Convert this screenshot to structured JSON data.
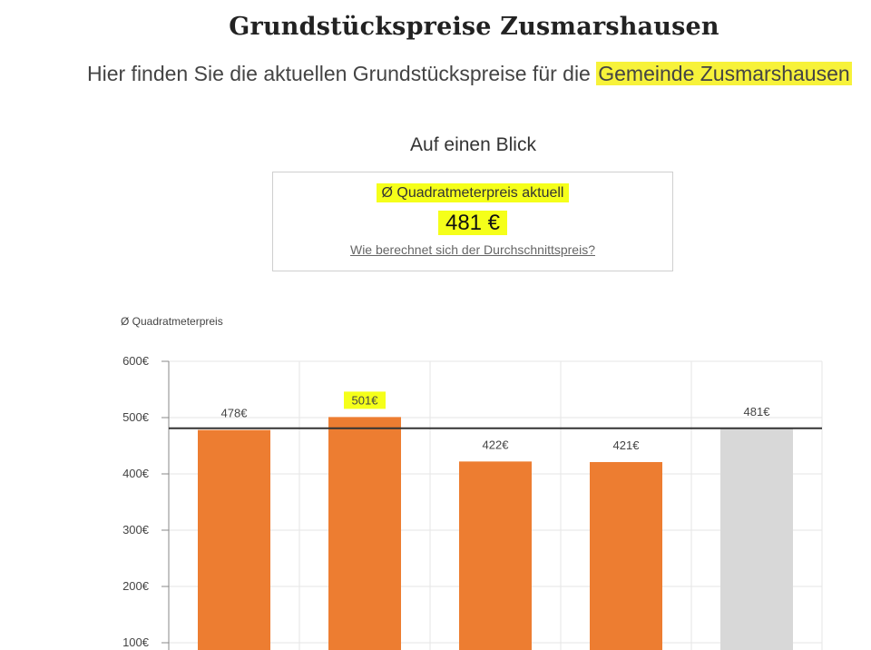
{
  "header": {
    "title": "Grundstückspreise Zusmarshausen",
    "subtitle_prefix": "Hier finden Sie die aktuellen Grundstückspreise für die ",
    "subtitle_highlight": "Gemeinde Zusmarshausen"
  },
  "overview": {
    "section_title": "Auf einen Blick",
    "label": "Ø Quadratmeterpreis aktuell",
    "value": "481 €",
    "link": "Wie berechnet sich der Durchschnittspreis?"
  },
  "colors": {
    "bar": "#ed7d31",
    "bar_average": "#d8d8d8",
    "reference_line": "#333333",
    "highlight": "#f5ff1a",
    "grid": "#e6e6e6"
  },
  "chart_data": {
    "type": "bar",
    "ylabel": "Ø Quadratmeterpreis",
    "ylim": [
      0,
      600
    ],
    "yticks": [
      100,
      200,
      300,
      400,
      500,
      600
    ],
    "ytick_labels": [
      "100€",
      "200€",
      "300€",
      "400€",
      "500€",
      "600€"
    ],
    "values": [
      478,
      501,
      422,
      421,
      481
    ],
    "value_labels": [
      "478€",
      "501€",
      "422€",
      "421€",
      "481€"
    ],
    "bar_kinds": [
      "data",
      "data",
      "data",
      "data",
      "average"
    ],
    "highlighted_index": 1,
    "reference_line": 481,
    "grid": true
  }
}
